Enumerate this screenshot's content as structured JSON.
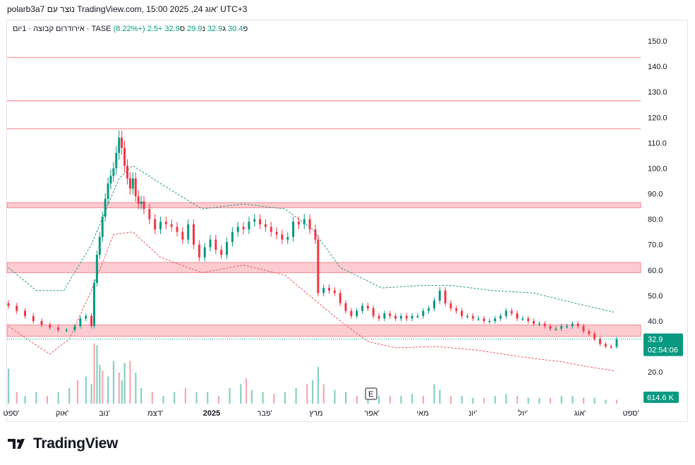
{
  "header": {
    "text": "polarb3a7 נוצר עם TradingView.com, 15:00 2025 ,24 אוג' UTC+3"
  },
  "legend": {
    "symbol": "אירודרום קבוצה · 1יום · TASE",
    "o_label": "פ",
    "o_value": "30.4",
    "h_label": "ג",
    "h_value": "32.9",
    "l_label": "נ",
    "l_value": "29.9",
    "c_label": "ס",
    "c_value": "32.9",
    "change": "+2.5 (+8.22%)"
  },
  "price_badge": {
    "price": "32.9",
    "countdown": "02:54:06",
    "color": "#089981"
  },
  "volume_badge": {
    "value": "614.6 K",
    "color": "#089981"
  },
  "earnings_marker": {
    "label": "E"
  },
  "brand": {
    "name": "TradingView"
  },
  "colors": {
    "up": "#089981",
    "down": "#f23645",
    "zone": "#f7a1a7",
    "line": "#f7a1a7"
  },
  "chart_data": {
    "type": "candlestick",
    "y_ticks": [
      "150.0",
      "140.0",
      "130.0",
      "120.0",
      "110.0",
      "100.0",
      "90.0",
      "80.0",
      "70.0",
      "60.0",
      "50.0",
      "40.0",
      "20.0"
    ],
    "ylim": [
      20,
      152
    ],
    "x_ticks": [
      "ספט'",
      "אוק'",
      "נוב'",
      "דצמ'",
      "2025",
      "פבר'",
      "מרץ",
      "אפר'",
      "מאי",
      "יונ'",
      "יול'",
      "אוג'",
      "ספט'"
    ],
    "horizontal_lines": [
      143.5,
      126.5,
      115.5
    ],
    "zones": [
      [
        84.5,
        86.5
      ],
      [
        59,
        63
      ],
      [
        34,
        38.5
      ]
    ],
    "close_series": [
      {
        "x": 0,
        "y": 46
      },
      {
        "x": 3,
        "y": 44
      },
      {
        "x": 6,
        "y": 42
      },
      {
        "x": 9,
        "y": 40
      },
      {
        "x": 12,
        "y": 38.5
      },
      {
        "x": 15,
        "y": 37.5
      },
      {
        "x": 18,
        "y": 36.5
      },
      {
        "x": 21,
        "y": 36.5
      },
      {
        "x": 24,
        "y": 38
      },
      {
        "x": 26,
        "y": 41
      },
      {
        "x": 28,
        "y": 42
      },
      {
        "x": 30,
        "y": 38
      },
      {
        "x": 31,
        "y": 55
      },
      {
        "x": 32,
        "y": 66
      },
      {
        "x": 33,
        "y": 73
      },
      {
        "x": 34,
        "y": 81
      },
      {
        "x": 35,
        "y": 88
      },
      {
        "x": 36,
        "y": 94
      },
      {
        "x": 37,
        "y": 97
      },
      {
        "x": 38,
        "y": 100
      },
      {
        "x": 39,
        "y": 106
      },
      {
        "x": 40,
        "y": 112
      },
      {
        "x": 41,
        "y": 108
      },
      {
        "x": 42,
        "y": 101
      },
      {
        "x": 43,
        "y": 96
      },
      {
        "x": 44,
        "y": 92
      },
      {
        "x": 45,
        "y": 96
      },
      {
        "x": 46,
        "y": 89
      },
      {
        "x": 47,
        "y": 86
      },
      {
        "x": 48,
        "y": 87
      },
      {
        "x": 49,
        "y": 84
      },
      {
        "x": 51,
        "y": 80
      },
      {
        "x": 53,
        "y": 76
      },
      {
        "x": 55,
        "y": 79
      },
      {
        "x": 57,
        "y": 78
      },
      {
        "x": 59,
        "y": 77
      },
      {
        "x": 61,
        "y": 75
      },
      {
        "x": 63,
        "y": 72
      },
      {
        "x": 65,
        "y": 78
      },
      {
        "x": 67,
        "y": 70
      },
      {
        "x": 69,
        "y": 65
      },
      {
        "x": 71,
        "y": 69
      },
      {
        "x": 73,
        "y": 72
      },
      {
        "x": 75,
        "y": 68
      },
      {
        "x": 77,
        "y": 66
      },
      {
        "x": 79,
        "y": 71
      },
      {
        "x": 81,
        "y": 75
      },
      {
        "x": 83,
        "y": 77
      },
      {
        "x": 85,
        "y": 76
      },
      {
        "x": 87,
        "y": 79
      },
      {
        "x": 89,
        "y": 80
      },
      {
        "x": 91,
        "y": 78
      },
      {
        "x": 93,
        "y": 77
      },
      {
        "x": 95,
        "y": 75
      },
      {
        "x": 97,
        "y": 74
      },
      {
        "x": 99,
        "y": 72
      },
      {
        "x": 101,
        "y": 73
      },
      {
        "x": 103,
        "y": 79
      },
      {
        "x": 105,
        "y": 78
      },
      {
        "x": 107,
        "y": 80
      },
      {
        "x": 109,
        "y": 76
      },
      {
        "x": 111,
        "y": 72
      },
      {
        "x": 112,
        "y": 51
      },
      {
        "x": 114,
        "y": 53
      },
      {
        "x": 116,
        "y": 52
      },
      {
        "x": 118,
        "y": 51
      },
      {
        "x": 120,
        "y": 47
      },
      {
        "x": 122,
        "y": 44
      },
      {
        "x": 124,
        "y": 42
      },
      {
        "x": 126,
        "y": 44
      },
      {
        "x": 128,
        "y": 46
      },
      {
        "x": 130,
        "y": 45
      },
      {
        "x": 132,
        "y": 42
      },
      {
        "x": 134,
        "y": 41
      },
      {
        "x": 136,
        "y": 43
      },
      {
        "x": 138,
        "y": 42
      },
      {
        "x": 140,
        "y": 41
      },
      {
        "x": 142,
        "y": 42
      },
      {
        "x": 144,
        "y": 41
      },
      {
        "x": 146,
        "y": 42
      },
      {
        "x": 148,
        "y": 42
      },
      {
        "x": 150,
        "y": 44
      },
      {
        "x": 152,
        "y": 45
      },
      {
        "x": 154,
        "y": 48
      },
      {
        "x": 156,
        "y": 52
      },
      {
        "x": 158,
        "y": 47
      },
      {
        "x": 160,
        "y": 45
      },
      {
        "x": 162,
        "y": 44
      },
      {
        "x": 164,
        "y": 42
      },
      {
        "x": 166,
        "y": 42
      },
      {
        "x": 168,
        "y": 41
      },
      {
        "x": 170,
        "y": 41
      },
      {
        "x": 172,
        "y": 40
      },
      {
        "x": 174,
        "y": 40
      },
      {
        "x": 176,
        "y": 41
      },
      {
        "x": 178,
        "y": 42
      },
      {
        "x": 180,
        "y": 44
      },
      {
        "x": 182,
        "y": 43
      },
      {
        "x": 184,
        "y": 41
      },
      {
        "x": 186,
        "y": 41
      },
      {
        "x": 188,
        "y": 40
      },
      {
        "x": 190,
        "y": 39
      },
      {
        "x": 192,
        "y": 39
      },
      {
        "x": 194,
        "y": 38
      },
      {
        "x": 196,
        "y": 37
      },
      {
        "x": 198,
        "y": 37
      },
      {
        "x": 200,
        "y": 38
      },
      {
        "x": 202,
        "y": 38
      },
      {
        "x": 204,
        "y": 39
      },
      {
        "x": 206,
        "y": 38
      },
      {
        "x": 208,
        "y": 36
      },
      {
        "x": 210,
        "y": 35
      },
      {
        "x": 212,
        "y": 33
      },
      {
        "x": 214,
        "y": 31
      },
      {
        "x": 216,
        "y": 30
      },
      {
        "x": 218,
        "y": 29.9
      },
      {
        "x": 220,
        "y": 32.9
      }
    ],
    "upper_band": [
      {
        "x": 0,
        "y": 61
      },
      {
        "x": 10,
        "y": 52
      },
      {
        "x": 20,
        "y": 52
      },
      {
        "x": 30,
        "y": 70
      },
      {
        "x": 40,
        "y": 96
      },
      {
        "x": 45,
        "y": 101
      },
      {
        "x": 55,
        "y": 94
      },
      {
        "x": 70,
        "y": 84
      },
      {
        "x": 85,
        "y": 86
      },
      {
        "x": 100,
        "y": 84
      },
      {
        "x": 110,
        "y": 76
      },
      {
        "x": 120,
        "y": 61
      },
      {
        "x": 135,
        "y": 53
      },
      {
        "x": 150,
        "y": 54
      },
      {
        "x": 160,
        "y": 54
      },
      {
        "x": 175,
        "y": 52
      },
      {
        "x": 190,
        "y": 51
      },
      {
        "x": 205,
        "y": 47
      },
      {
        "x": 219,
        "y": 43.5
      }
    ],
    "lower_band": [
      {
        "x": 0,
        "y": 38
      },
      {
        "x": 8,
        "y": 32
      },
      {
        "x": 15,
        "y": 27
      },
      {
        "x": 22,
        "y": 33
      },
      {
        "x": 30,
        "y": 52
      },
      {
        "x": 38,
        "y": 74
      },
      {
        "x": 45,
        "y": 75
      },
      {
        "x": 55,
        "y": 65
      },
      {
        "x": 70,
        "y": 59
      },
      {
        "x": 85,
        "y": 62
      },
      {
        "x": 100,
        "y": 58
      },
      {
        "x": 110,
        "y": 49
      },
      {
        "x": 120,
        "y": 40
      },
      {
        "x": 130,
        "y": 32
      },
      {
        "x": 140,
        "y": 29.5
      },
      {
        "x": 155,
        "y": 30
      },
      {
        "x": 170,
        "y": 28.5
      },
      {
        "x": 185,
        "y": 26
      },
      {
        "x": 200,
        "y": 24
      },
      {
        "x": 210,
        "y": 22
      },
      {
        "x": 219,
        "y": 20.5
      }
    ],
    "volume": [
      {
        "x": 0,
        "v": 0.9
      },
      {
        "x": 3,
        "v": 0.3
      },
      {
        "x": 6,
        "v": 0.2
      },
      {
        "x": 10,
        "v": 0.3
      },
      {
        "x": 14,
        "v": 0.2
      },
      {
        "x": 18,
        "v": 0.3
      },
      {
        "x": 22,
        "v": 0.4
      },
      {
        "x": 25,
        "v": 0.6
      },
      {
        "x": 28,
        "v": 0.7
      },
      {
        "x": 30,
        "v": 0.5
      },
      {
        "x": 31,
        "v": 1.55
      },
      {
        "x": 32,
        "v": 1.5
      },
      {
        "x": 33,
        "v": 1.0
      },
      {
        "x": 34,
        "v": 0.85
      },
      {
        "x": 36,
        "v": 0.7
      },
      {
        "x": 38,
        "v": 1.1
      },
      {
        "x": 40,
        "v": 0.8
      },
      {
        "x": 41,
        "v": 0.6
      },
      {
        "x": 42,
        "v": 1.05
      },
      {
        "x": 44,
        "v": 1.1
      },
      {
        "x": 46,
        "v": 0.8
      },
      {
        "x": 48,
        "v": 0.4
      },
      {
        "x": 52,
        "v": 0.3
      },
      {
        "x": 56,
        "v": 0.2
      },
      {
        "x": 60,
        "v": 0.3
      },
      {
        "x": 64,
        "v": 0.4
      },
      {
        "x": 68,
        "v": 0.3
      },
      {
        "x": 72,
        "v": 0.3
      },
      {
        "x": 76,
        "v": 0.2
      },
      {
        "x": 80,
        "v": 0.4
      },
      {
        "x": 84,
        "v": 0.5
      },
      {
        "x": 86,
        "v": 0.65
      },
      {
        "x": 88,
        "v": 0.35
      },
      {
        "x": 92,
        "v": 0.3
      },
      {
        "x": 96,
        "v": 0.25
      },
      {
        "x": 100,
        "v": 0.3
      },
      {
        "x": 104,
        "v": 0.4
      },
      {
        "x": 108,
        "v": 0.5
      },
      {
        "x": 110,
        "v": 0.6
      },
      {
        "x": 112,
        "v": 0.95
      },
      {
        "x": 114,
        "v": 0.5
      },
      {
        "x": 118,
        "v": 0.35
      },
      {
        "x": 122,
        "v": 0.3
      },
      {
        "x": 126,
        "v": 0.2
      },
      {
        "x": 130,
        "v": 0.2
      },
      {
        "x": 134,
        "v": 0.2
      },
      {
        "x": 138,
        "v": 0.2
      },
      {
        "x": 142,
        "v": 0.2
      },
      {
        "x": 146,
        "v": 0.25
      },
      {
        "x": 150,
        "v": 0.2
      },
      {
        "x": 154,
        "v": 0.5
      },
      {
        "x": 156,
        "v": 0.35
      },
      {
        "x": 160,
        "v": 0.2
      },
      {
        "x": 164,
        "v": 0.2
      },
      {
        "x": 168,
        "v": 0.15
      },
      {
        "x": 172,
        "v": 0.15
      },
      {
        "x": 176,
        "v": 0.2
      },
      {
        "x": 180,
        "v": 0.25
      },
      {
        "x": 184,
        "v": 0.2
      },
      {
        "x": 188,
        "v": 0.15
      },
      {
        "x": 192,
        "v": 0.15
      },
      {
        "x": 196,
        "v": 0.15
      },
      {
        "x": 200,
        "v": 0.2
      },
      {
        "x": 204,
        "v": 0.2
      },
      {
        "x": 208,
        "v": 0.15
      },
      {
        "x": 212,
        "v": 0.15
      },
      {
        "x": 216,
        "v": 0.1
      },
      {
        "x": 220,
        "v": 0.1
      }
    ]
  }
}
